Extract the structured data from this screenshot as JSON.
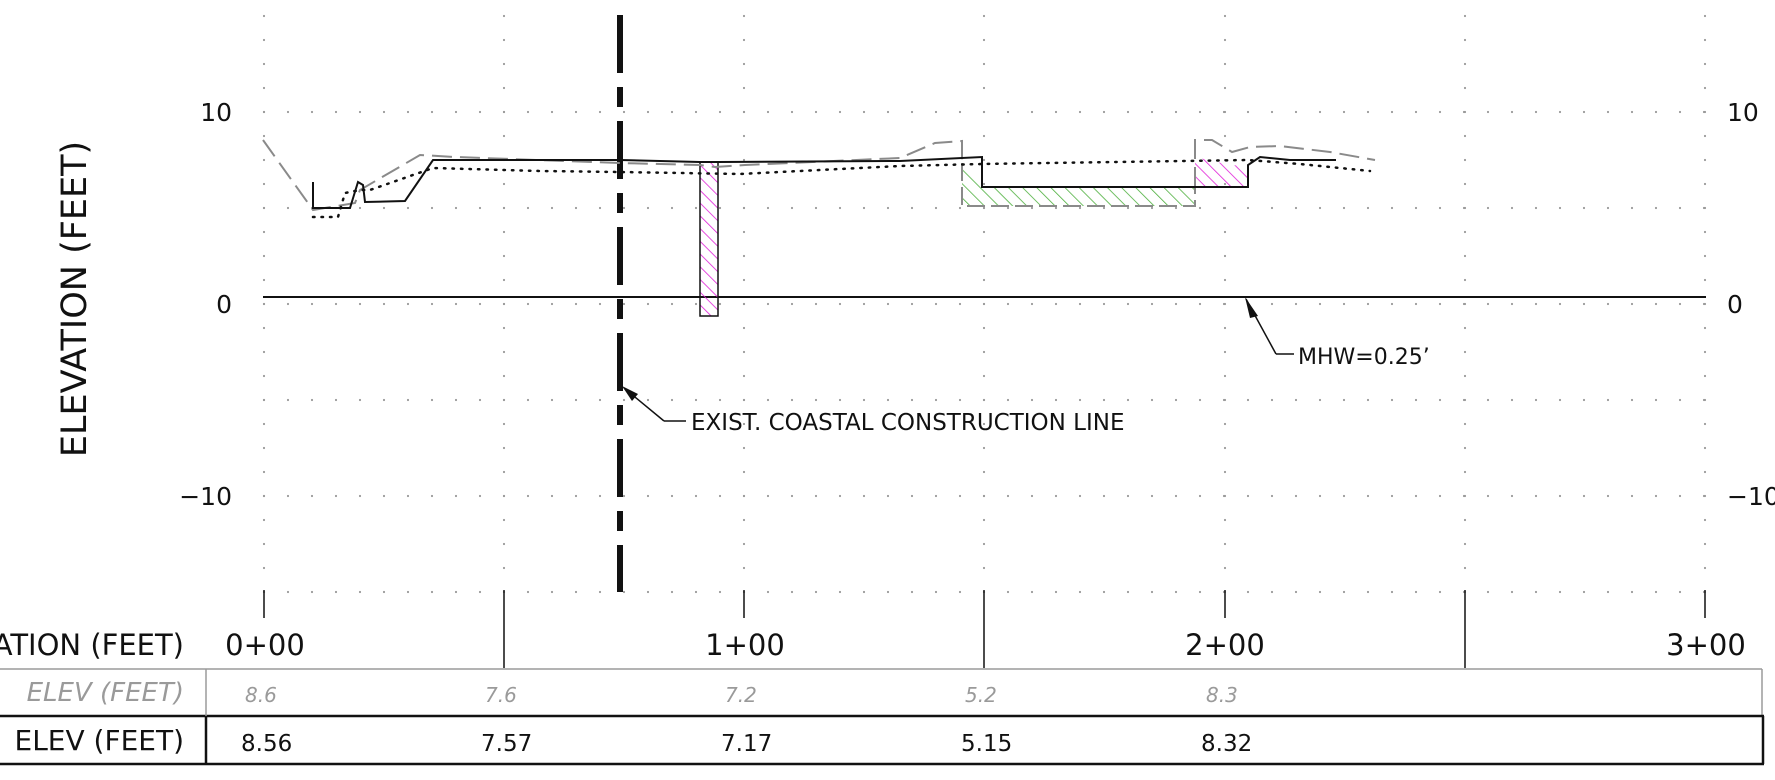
{
  "axis": {
    "y_title": "ELEVATION (FEET)",
    "y_ticks": [
      "10",
      "0",
      "−10"
    ],
    "y_ticks_right": [
      "10",
      "0",
      "−10"
    ],
    "y_tick_values": [
      10,
      0,
      -10
    ],
    "ylim": [
      -15,
      15
    ],
    "stations": [
      "0+00",
      "1+00",
      "2+00",
      "3+00"
    ],
    "station_values": [
      0,
      100,
      200,
      300
    ],
    "xlim": [
      0,
      300
    ],
    "x_title_partial": "ATION (FEET)"
  },
  "annotations": {
    "coastal_line": "EXIST. COASTAL CONSTRUCTION LINE",
    "mhw": "MHW=0.25’"
  },
  "table": {
    "row1_label": "ELEV (FEET)",
    "row2_label": "ELEV (FEET)",
    "row1_values": [
      "8.6",
      "7.6",
      "7.2",
      "5.2",
      "8.3"
    ],
    "row2_values": [
      "8.56",
      "7.57",
      "7.17",
      "5.15",
      "8.32"
    ]
  },
  "colors": {
    "ink": "#111111",
    "existing_ground": "#8a8a8a",
    "grid_dot": "#9a9a9a",
    "magenta_hatch": "#e020d8",
    "green_hatch": "#4caf3c",
    "pile_fill": "#f4c6f0"
  }
}
